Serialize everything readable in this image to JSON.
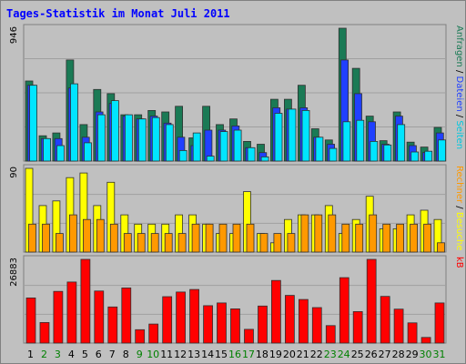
{
  "chart_data": {
    "type": "bar",
    "title": "Tages-Statistik im Monat Juli 2011",
    "categories": [
      "1",
      "2",
      "3",
      "4",
      "5",
      "6",
      "7",
      "8",
      "9",
      "10",
      "11",
      "12",
      "13",
      "14",
      "15",
      "16",
      "17",
      "18",
      "19",
      "20",
      "21",
      "22",
      "23",
      "24",
      "25",
      "26",
      "27",
      "28",
      "29",
      "30",
      "31"
    ],
    "weekend_categories": [
      "2",
      "3",
      "9",
      "10",
      "16",
      "17",
      "23",
      "24",
      "30",
      "31"
    ],
    "colors": {
      "weekday_label": "#000000",
      "weekend_label": "#008000",
      "anfragen": "#1a7a55",
      "dateien": "#2040ff",
      "seiten": "#00e5ff",
      "besuche": "#ffff00",
      "rechner": "#ff9900",
      "kb": "#ff0000",
      "title": "#0000ff"
    },
    "panels": [
      {
        "name": "hits",
        "ymax": 946,
        "ymax_label": "946",
        "right_labels": [
          {
            "text": "Anfragen",
            "color": "#1a7a55"
          },
          {
            "text": " / ",
            "color": "#000000"
          },
          {
            "text": "Dateien",
            "color": "#2040ff"
          },
          {
            "text": " / ",
            "color": "#000000"
          },
          {
            "text": "Seiten",
            "color": "#00c8e0"
          }
        ],
        "series": [
          {
            "name": "Anfragen",
            "color": "#1a7a55",
            "values": [
              570,
              180,
              200,
              720,
              260,
              510,
              480,
              330,
              330,
              360,
              350,
              390,
              165,
              390,
              260,
              300,
              140,
              120,
              440,
              440,
              540,
              230,
              150,
              946,
              660,
              320,
              145,
              350,
              135,
              100,
              240
            ]
          },
          {
            "name": "Dateien",
            "color": "#2040ff",
            "values": [
              540,
              160,
              160,
              520,
              170,
              350,
              410,
              320,
              300,
              320,
              270,
              170,
              110,
              220,
              220,
              250,
              95,
              60,
              380,
              370,
              380,
              170,
              120,
              720,
              480,
              280,
              120,
              320,
              110,
              60,
              200
            ]
          },
          {
            "name": "Seiten",
            "color": "#00e5ff",
            "values": [
              540,
              160,
              110,
              550,
              130,
              330,
              430,
              330,
              300,
              310,
              260,
              75,
              200,
              35,
              210,
              220,
              95,
              30,
              340,
              370,
              360,
              170,
              90,
              280,
              290,
              140,
              115,
              260,
              65,
              70,
              150
            ]
          }
        ]
      },
      {
        "name": "visits",
        "ymax": 90,
        "ymax_label": "90",
        "right_labels": [
          {
            "text": "Rechner",
            "color": "#ff9900"
          },
          {
            "text": " / ",
            "color": "#000000"
          },
          {
            "text": "Besuche",
            "color": "#ffff00"
          }
        ],
        "series": [
          {
            "name": "Besuche",
            "color": "#ffff00",
            "values": [
              90,
              50,
              55,
              80,
              85,
              50,
              75,
              40,
              30,
              30,
              30,
              40,
              40,
              30,
              20,
              20,
              65,
              20,
              10,
              35,
              40,
              40,
              50,
              20,
              35,
              60,
              25,
              25,
              40,
              45,
              35
            ]
          },
          {
            "name": "Rechner",
            "color": "#ff9900",
            "values": [
              30,
              30,
              20,
              40,
              35,
              35,
              30,
              20,
              20,
              20,
              20,
              20,
              30,
              30,
              30,
              30,
              30,
              20,
              20,
              20,
              40,
              40,
              40,
              30,
              30,
              40,
              30,
              30,
              30,
              30,
              10
            ]
          }
        ]
      },
      {
        "name": "kb",
        "ymax": 26883,
        "ymax_label": "26883",
        "right_labels": [
          {
            "text": "kB",
            "color": "#ff0000"
          }
        ],
        "series": [
          {
            "name": "kB",
            "color": "#ff0000",
            "values": [
              14500,
              6600,
              16600,
              19600,
              26883,
              16700,
              11600,
              17700,
              4300,
              6100,
              14900,
              16400,
              17200,
              12000,
              12900,
              11000,
              4400,
              11900,
              20100,
              15300,
              14000,
              11400,
              5600,
              21000,
              10100,
              26883,
              15000,
              10900,
              6500,
              1800,
              12900
            ]
          }
        ]
      }
    ]
  }
}
